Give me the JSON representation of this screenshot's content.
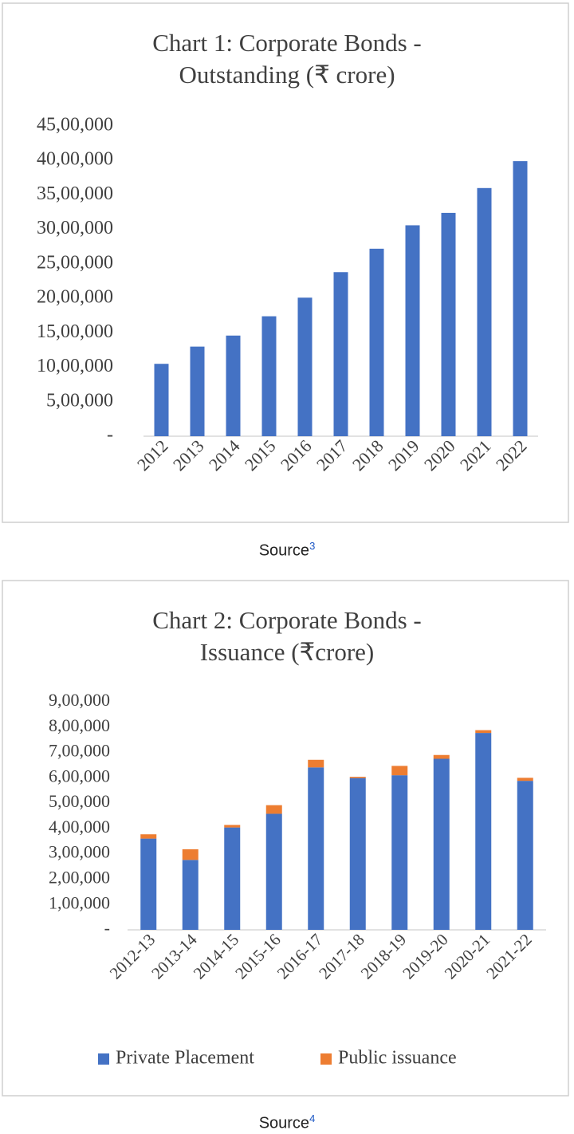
{
  "chart_data": [
    {
      "type": "bar",
      "title": "Chart 1: Corporate Bonds - Outstanding (₹ crore)",
      "categories": [
        "2012",
        "2013",
        "2014",
        "2015",
        "2016",
        "2017",
        "2018",
        "2019",
        "2020",
        "2021",
        "2022"
      ],
      "values": [
        1050000,
        1300000,
        1460000,
        1740000,
        2010000,
        2380000,
        2720000,
        3060000,
        3240000,
        3600000,
        3990000
      ],
      "color": "#4472c4",
      "ylim": [
        0,
        4500000
      ],
      "yticks": [
        {
          "value": 0,
          "label": "-"
        },
        {
          "value": 500000,
          "label": "5,00,000"
        },
        {
          "value": 1000000,
          "label": "10,00,000"
        },
        {
          "value": 1500000,
          "label": "15,00,000"
        },
        {
          "value": 2000000,
          "label": "20,00,000"
        },
        {
          "value": 2500000,
          "label": "25,00,000"
        },
        {
          "value": 3000000,
          "label": "30,00,000"
        },
        {
          "value": 3500000,
          "label": "35,00,000"
        },
        {
          "value": 4000000,
          "label": "40,00,000"
        },
        {
          "value": 4500000,
          "label": "45,00,000"
        }
      ]
    },
    {
      "type": "stacked_bar",
      "title": "Chart 2: Corporate Bonds - Issuance (₹crore)",
      "categories": [
        "2012-13",
        "2013-14",
        "2014-15",
        "2015-16",
        "2016-17",
        "2017-18",
        "2018-19",
        "2019-20",
        "2020-21",
        "2021-22"
      ],
      "series": [
        {
          "name": "Private Placement",
          "color": "#4472c4",
          "values": [
            360000,
            276000,
            404000,
            458000,
            641000,
            599000,
            610000,
            675000,
            777000,
            588000
          ]
        },
        {
          "name": "Public issuance",
          "color": "#ed7d31",
          "values": [
            17000,
            42000,
            10000,
            34000,
            30000,
            5000,
            37000,
            15000,
            11000,
            12000
          ]
        }
      ],
      "ylim": [
        0,
        900000
      ],
      "yticks": [
        {
          "value": 0,
          "label": "-"
        },
        {
          "value": 100000,
          "label": "1,00,000"
        },
        {
          "value": 200000,
          "label": "2,00,000"
        },
        {
          "value": 300000,
          "label": "3,00,000"
        },
        {
          "value": 400000,
          "label": "4,00,000"
        },
        {
          "value": 500000,
          "label": "5,00,000"
        },
        {
          "value": 600000,
          "label": "6,00,000"
        },
        {
          "value": 700000,
          "label": "7,00,000"
        },
        {
          "value": 800000,
          "label": "8,00,000"
        },
        {
          "value": 900000,
          "label": "9,00,000"
        }
      ],
      "legend": "bottom"
    }
  ],
  "sources": [
    {
      "text": "Source",
      "ref": "3"
    },
    {
      "text": "Source",
      "ref": "4"
    }
  ]
}
